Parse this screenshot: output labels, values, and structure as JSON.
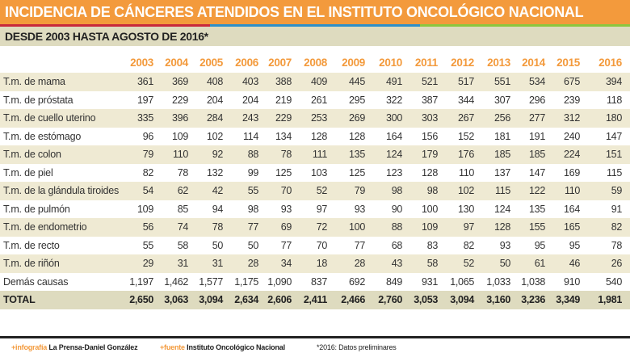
{
  "title": "INCIDENCIA DE CÁNCERES ATENDIDOS EN EL INSTITUTO ONCOLÓGICO NACIONAL",
  "subtitle": "DESDE 2003 HASTA AGOSTO DE 2016*",
  "colors": {
    "accent": "#F39A3C",
    "stripe": [
      "#C8283C",
      "#2C8FC9",
      "#8CC63F"
    ],
    "row_alt": "#EFEAD3",
    "band": "#DEDBBF"
  },
  "years": [
    "2003",
    "2004",
    "2005",
    "2006",
    "2007",
    "2008",
    "2009",
    "2010",
    "2011",
    "2012",
    "2013",
    "2014",
    "2015",
    "2016"
  ],
  "rows": [
    {
      "label": "T.m. de mama",
      "values": [
        "361",
        "369",
        "408",
        "403",
        "388",
        "409",
        "445",
        "491",
        "521",
        "517",
        "551",
        "534",
        "675",
        "394"
      ]
    },
    {
      "label": "T.m. de próstata",
      "values": [
        "197",
        "229",
        "204",
        "204",
        "219",
        "261",
        "295",
        "322",
        "387",
        "344",
        "307",
        "296",
        "239",
        "118"
      ]
    },
    {
      "label": "T.m. de cuello uterino",
      "values": [
        "335",
        "396",
        "284",
        "243",
        "229",
        "253",
        "269",
        "300",
        "303",
        "267",
        "256",
        "277",
        "312",
        "180"
      ]
    },
    {
      "label": "T.m. de estómago",
      "values": [
        "96",
        "109",
        "102",
        "114",
        "134",
        "128",
        "128",
        "164",
        "156",
        "152",
        "181",
        "191",
        "240",
        "147"
      ]
    },
    {
      "label": "T.m. de colon",
      "values": [
        "79",
        "110",
        "92",
        "88",
        "78",
        "111",
        "135",
        "124",
        "179",
        "176",
        "185",
        "185",
        "224",
        "151"
      ]
    },
    {
      "label": "T.m. de piel",
      "values": [
        "82",
        "78",
        "132",
        "99",
        "125",
        "103",
        "125",
        "123",
        "128",
        "110",
        "137",
        "147",
        "169",
        "115"
      ]
    },
    {
      "label": "T.m. de la glándula tiroides",
      "values": [
        "54",
        "62",
        "42",
        "55",
        "70",
        "52",
        "79",
        "98",
        "98",
        "102",
        "115",
        "122",
        "110",
        "59"
      ]
    },
    {
      "label": "T.m. de pulmón",
      "values": [
        "109",
        "85",
        "94",
        "98",
        "93",
        "97",
        "93",
        "90",
        "100",
        "130",
        "124",
        "135",
        "164",
        "91"
      ]
    },
    {
      "label": "T.m. de endometrio",
      "values": [
        "56",
        "74",
        "78",
        "77",
        "69",
        "72",
        "100",
        "88",
        "109",
        "97",
        "128",
        "155",
        "165",
        "82"
      ]
    },
    {
      "label": "T.m. de recto",
      "values": [
        "55",
        "58",
        "50",
        "50",
        "77",
        "70",
        "77",
        "68",
        "83",
        "82",
        "93",
        "95",
        "95",
        "78"
      ]
    },
    {
      "label": "T.m. de riñón",
      "values": [
        "29",
        "31",
        "31",
        "28",
        "34",
        "18",
        "28",
        "43",
        "58",
        "52",
        "50",
        "61",
        "46",
        "26"
      ]
    },
    {
      "label": "Demás causas",
      "values": [
        "1,197",
        "1,462",
        "1,577",
        "1,175",
        "1,090",
        "837",
        "692",
        "849",
        "931",
        "1,065",
        "1,033",
        "1,038",
        "910",
        "540"
      ]
    }
  ],
  "total": {
    "label": "TOTAL",
    "values": [
      "2,650",
      "3,063",
      "3,094",
      "2,634",
      "2,606",
      "2,411",
      "2,466",
      "2,760",
      "3,053",
      "3,094",
      "3,160",
      "3,236",
      "3,349",
      "1,981"
    ]
  },
  "footer": {
    "infografia_key": "+infografía",
    "infografia_value": "La Prensa-Daniel González",
    "fuente_key": "+fuente",
    "fuente_value": "Instituto Oncológico Nacional",
    "note": "*2016: Datos preliminares"
  }
}
